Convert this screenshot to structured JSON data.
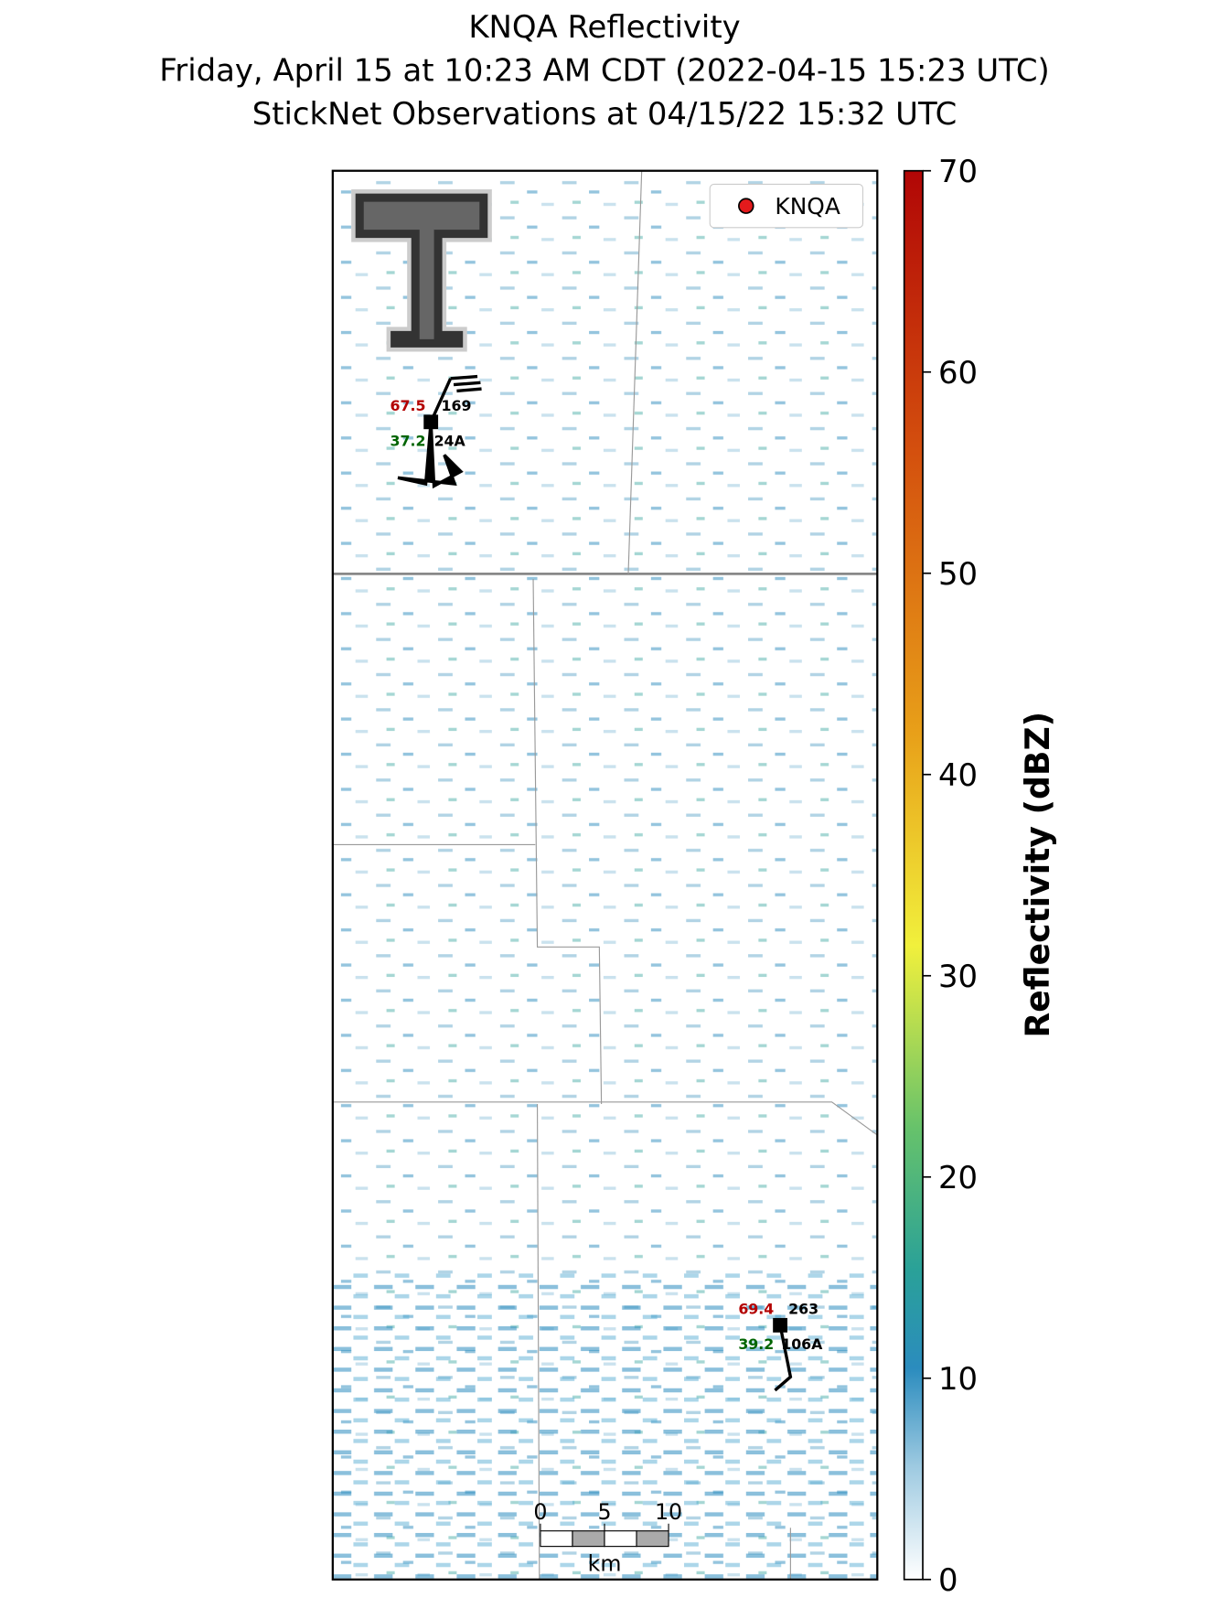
{
  "title": "KNQA Reflectivity",
  "subtitle": "Friday, April 15 at 10:23 AM CDT (2022-04-15 15:23 UTC)",
  "subtitle2": "StickNet Observations at 04/15/22 15:32 UTC",
  "legend": {
    "label": "KNQA",
    "color": "#e31a1c"
  },
  "colorbar": {
    "label": "Reflectivity (dBZ)",
    "lim": [
      0,
      70
    ],
    "ticks": [
      0,
      10,
      20,
      30,
      40,
      50,
      60,
      70
    ]
  },
  "stations": [
    {
      "id": "24A",
      "temperature": "67.5",
      "dewpoint": "37.2",
      "value": "169"
    },
    {
      "id": "106A",
      "temperature": "69.4",
      "dewpoint": "39.2",
      "value": "263"
    }
  ],
  "scale_bar": {
    "ticks": [
      0,
      5,
      10
    ],
    "unit": "km"
  }
}
